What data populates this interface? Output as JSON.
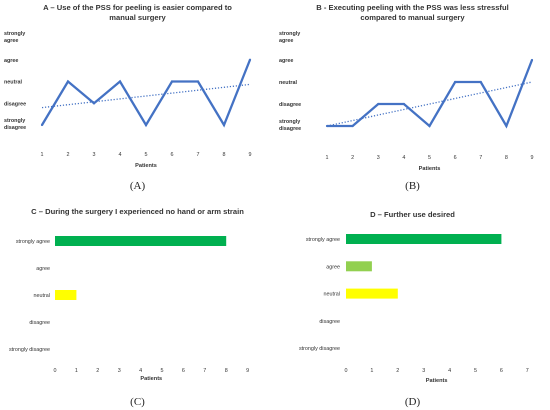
{
  "chart_data": [
    {
      "panel": "(A)",
      "type": "line",
      "title": "A – Use of the PSS for peeling is easier compared to manual surgery",
      "title_lines": [
        "A – Use of the PSS for peeling is easier compared to",
        "manual surgery"
      ],
      "xlabel": "Patients",
      "x": [
        1,
        2,
        3,
        4,
        5,
        6,
        7,
        8,
        9
      ],
      "y_levels": [
        "strongly disagree",
        "disagree",
        "neutral",
        "agree",
        "strongly agree"
      ],
      "y_level_lines": [
        [
          "strongly",
          "disagree"
        ],
        [
          "disagree"
        ],
        [
          "neutral"
        ],
        [
          "agree"
        ],
        [
          "strongly",
          "agree"
        ]
      ],
      "values": [
        1,
        3,
        2,
        3,
        1,
        3,
        3,
        1,
        4
      ],
      "trendline": true,
      "color": "#4472C4"
    },
    {
      "panel": "(B)",
      "type": "line",
      "title": "B - Executing peeling with the PSS was less stressful compared to manual surgery",
      "title_lines": [
        "B - Executing peeling with the PSS was less stressful",
        "compared to manual surgery"
      ],
      "xlabel": "Patients",
      "x": [
        1,
        2,
        3,
        4,
        5,
        6,
        7,
        8,
        9
      ],
      "y_levels": [
        "strongly disagree",
        "disagree",
        "neutral",
        "agree",
        "strongly agree"
      ],
      "y_level_lines": [
        [
          "strongly",
          "disagree"
        ],
        [
          "disagree"
        ],
        [
          "neutral"
        ],
        [
          "agree"
        ],
        [
          "strongly",
          "agree"
        ]
      ],
      "values": [
        1,
        1,
        2,
        2,
        1,
        3,
        3,
        1,
        4
      ],
      "trendline": true,
      "color": "#4472C4"
    },
    {
      "panel": "(C)",
      "type": "bar",
      "orientation": "horizontal",
      "title": "C – During the surgery I experienced no hand or arm strain",
      "xlabel": "Patients",
      "categories": [
        "strongly agree",
        "agree",
        "neutral",
        "disagree",
        "strongly disagree"
      ],
      "values": [
        8,
        0,
        1,
        0,
        0
      ],
      "colors": [
        "#00B050",
        "#92D050",
        "#FFFF00",
        "#FFC000",
        "#FF0000"
      ],
      "xlim": [
        0,
        9
      ],
      "xticks": [
        0,
        1,
        2,
        3,
        4,
        5,
        6,
        7,
        8,
        9
      ]
    },
    {
      "panel": "(D)",
      "type": "bar",
      "orientation": "horizontal",
      "title": "D – Further use desired",
      "xlabel": "Patients",
      "categories": [
        "strongly agree",
        "agree",
        "neutral",
        "disagree",
        "strongly disagree"
      ],
      "values": [
        6,
        1,
        2,
        0,
        0
      ],
      "colors": [
        "#00B050",
        "#92D050",
        "#FFFF00",
        "#FFC000",
        "#FF0000"
      ],
      "xlim": [
        0,
        7
      ],
      "xticks": [
        0,
        1,
        2,
        3,
        4,
        5,
        6,
        7
      ]
    }
  ]
}
